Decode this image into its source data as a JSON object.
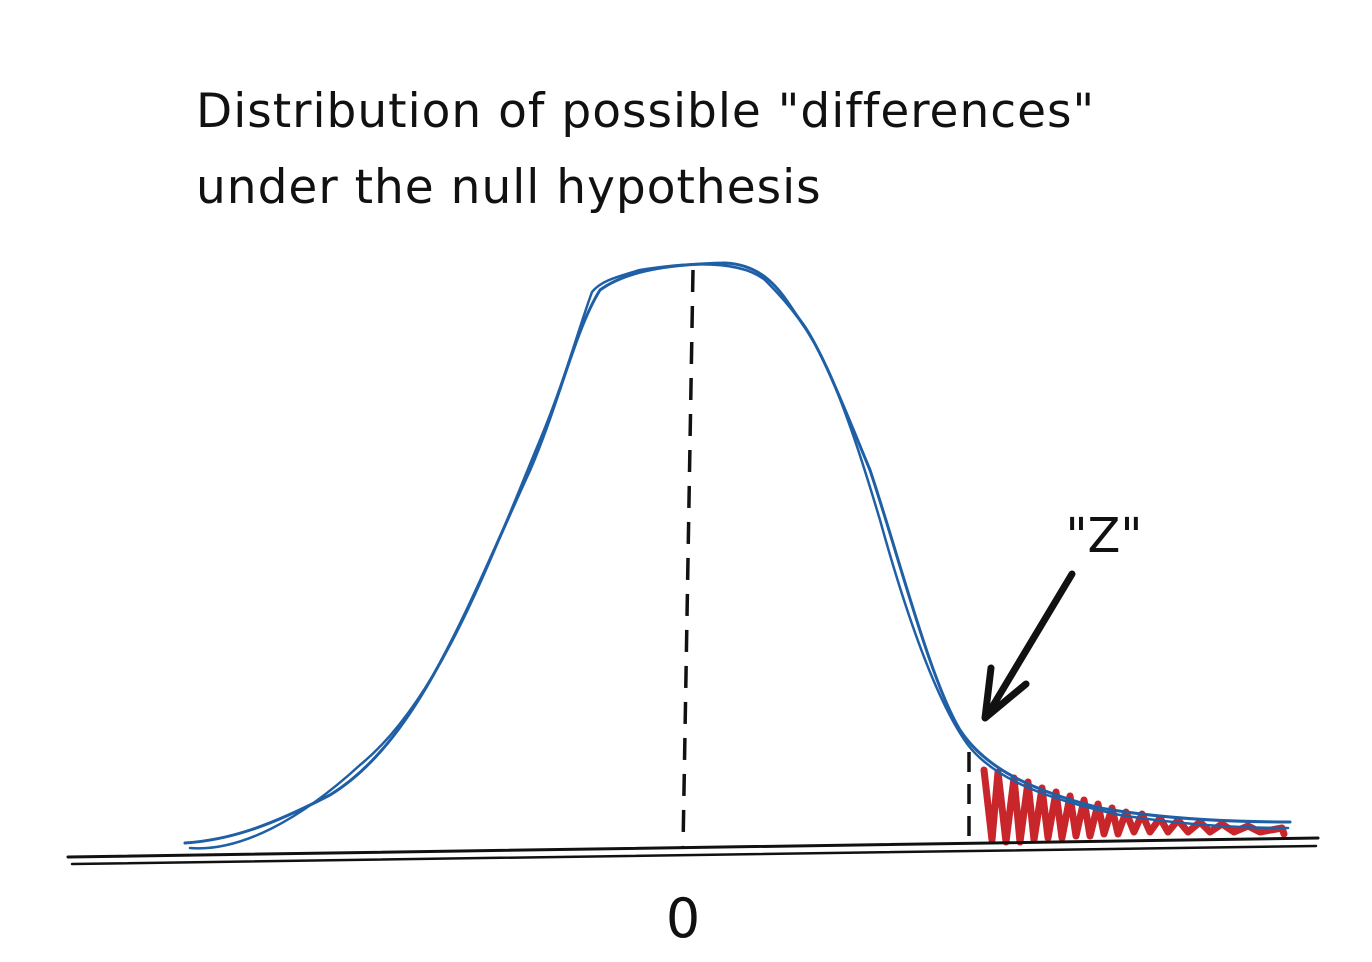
{
  "title": {
    "line1": "Distribution of possible \"differences\"",
    "line2": "under the null hypothesis"
  },
  "labels": {
    "zero": "0",
    "z": "\"Z\""
  },
  "colors": {
    "curve": "#1f5fa6",
    "tail_fill": "#c8262b",
    "ink": "#111111"
  }
}
